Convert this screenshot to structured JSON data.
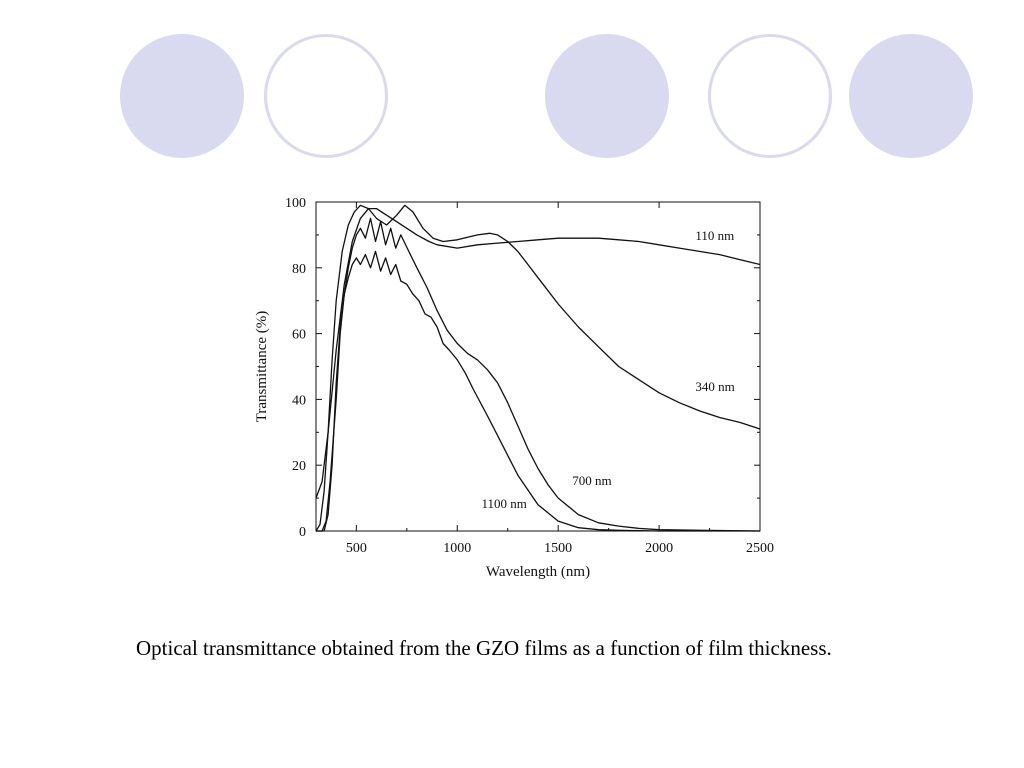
{
  "slide": {
    "caption": "Optical transmittance obtained from the GZO films as a function of film thickness.",
    "circle_color": "#d9d9ef"
  },
  "chart_data": {
    "type": "line",
    "title": "",
    "xlabel": "Wavelength (nm)",
    "ylabel": "Transmittance (%)",
    "xlim": [
      300,
      2500
    ],
    "ylim": [
      0,
      100
    ],
    "xticks": [
      500,
      1000,
      1500,
      2000,
      2500
    ],
    "yticks": [
      0,
      20,
      40,
      60,
      80,
      100
    ],
    "grid": false,
    "legend": "inline labels",
    "line_color": "#111111",
    "series": [
      {
        "name": "110 nm",
        "x": [
          300,
          330,
          360,
          400,
          440,
          480,
          520,
          560,
          600,
          650,
          700,
          750,
          800,
          860,
          900,
          1000,
          1100,
          1200,
          1300,
          1400,
          1500,
          1600,
          1700,
          1800,
          1900,
          2000,
          2100,
          2200,
          2300,
          2400,
          2500
        ],
        "y": [
          10,
          15,
          30,
          55,
          75,
          88,
          95,
          98,
          98,
          96,
          94,
          92,
          90,
          88,
          87,
          86,
          87,
          87.5,
          88,
          88.5,
          89,
          89,
          89,
          88.5,
          88,
          87,
          86,
          85,
          84,
          82.5,
          81
        ]
      },
      {
        "name": "340 nm",
        "x": [
          300,
          320,
          340,
          360,
          380,
          400,
          430,
          460,
          490,
          520,
          560,
          600,
          650,
          700,
          740,
          780,
          830,
          880,
          930,
          1000,
          1100,
          1160,
          1200,
          1250,
          1300,
          1350,
          1400,
          1450,
          1500,
          1600,
          1700,
          1800,
          1900,
          2000,
          2100,
          2200,
          2300,
          2400,
          2500
        ],
        "y": [
          0,
          2,
          12,
          30,
          52,
          70,
          85,
          93,
          97,
          99,
          98,
          95,
          93,
          96,
          99,
          97,
          92,
          89,
          88,
          88.5,
          90,
          90.5,
          90,
          88,
          85,
          81,
          77,
          73,
          69,
          62,
          56,
          50,
          46,
          42,
          39,
          36.5,
          34.5,
          33,
          31
        ]
      },
      {
        "name": "700 nm",
        "x": [
          300,
          330,
          350,
          370,
          400,
          420,
          440,
          460,
          480,
          500,
          520,
          545,
          570,
          595,
          620,
          645,
          670,
          695,
          720,
          760,
          800,
          850,
          900,
          950,
          1000,
          1050,
          1100,
          1150,
          1200,
          1250,
          1300,
          1350,
          1400,
          1450,
          1500,
          1600,
          1700,
          1800,
          1900,
          2000,
          2200,
          2500
        ],
        "y": [
          0,
          0,
          3,
          15,
          40,
          60,
          72,
          80,
          86,
          90,
          92,
          89,
          95,
          88,
          94,
          87,
          92,
          86,
          90,
          85,
          80,
          74,
          67,
          61,
          57,
          54,
          52,
          49,
          45,
          39,
          32,
          25,
          19,
          14,
          10,
          5,
          2.5,
          1.5,
          0.8,
          0.4,
          0.2,
          0
        ]
      },
      {
        "name": "1100 nm",
        "x": [
          300,
          340,
          360,
          380,
          400,
          420,
          440,
          460,
          480,
          500,
          520,
          545,
          570,
          595,
          620,
          645,
          670,
          695,
          720,
          750,
          780,
          810,
          840,
          870,
          900,
          930,
          960,
          1000,
          1040,
          1080,
          1150,
          1200,
          1300,
          1400,
          1500,
          1600,
          1700,
          1800,
          2000,
          2500
        ],
        "y": [
          0,
          0,
          5,
          20,
          45,
          62,
          72,
          77,
          81,
          83,
          81,
          84,
          80,
          85,
          79,
          83,
          78,
          81,
          76,
          75,
          72,
          70,
          66,
          65,
          62,
          57,
          55,
          52,
          48,
          43,
          35,
          29,
          17,
          8,
          3,
          1,
          0.4,
          0.2,
          0,
          0
        ]
      }
    ],
    "labels": [
      {
        "text": "110 nm",
        "x": 2180,
        "y": 88.5
      },
      {
        "text": "340 nm",
        "x": 2180,
        "y": 42.5
      },
      {
        "text": "700 nm",
        "x": 1570,
        "y": 14
      },
      {
        "text": "1100 nm",
        "x": 1120,
        "y": 7
      }
    ]
  }
}
